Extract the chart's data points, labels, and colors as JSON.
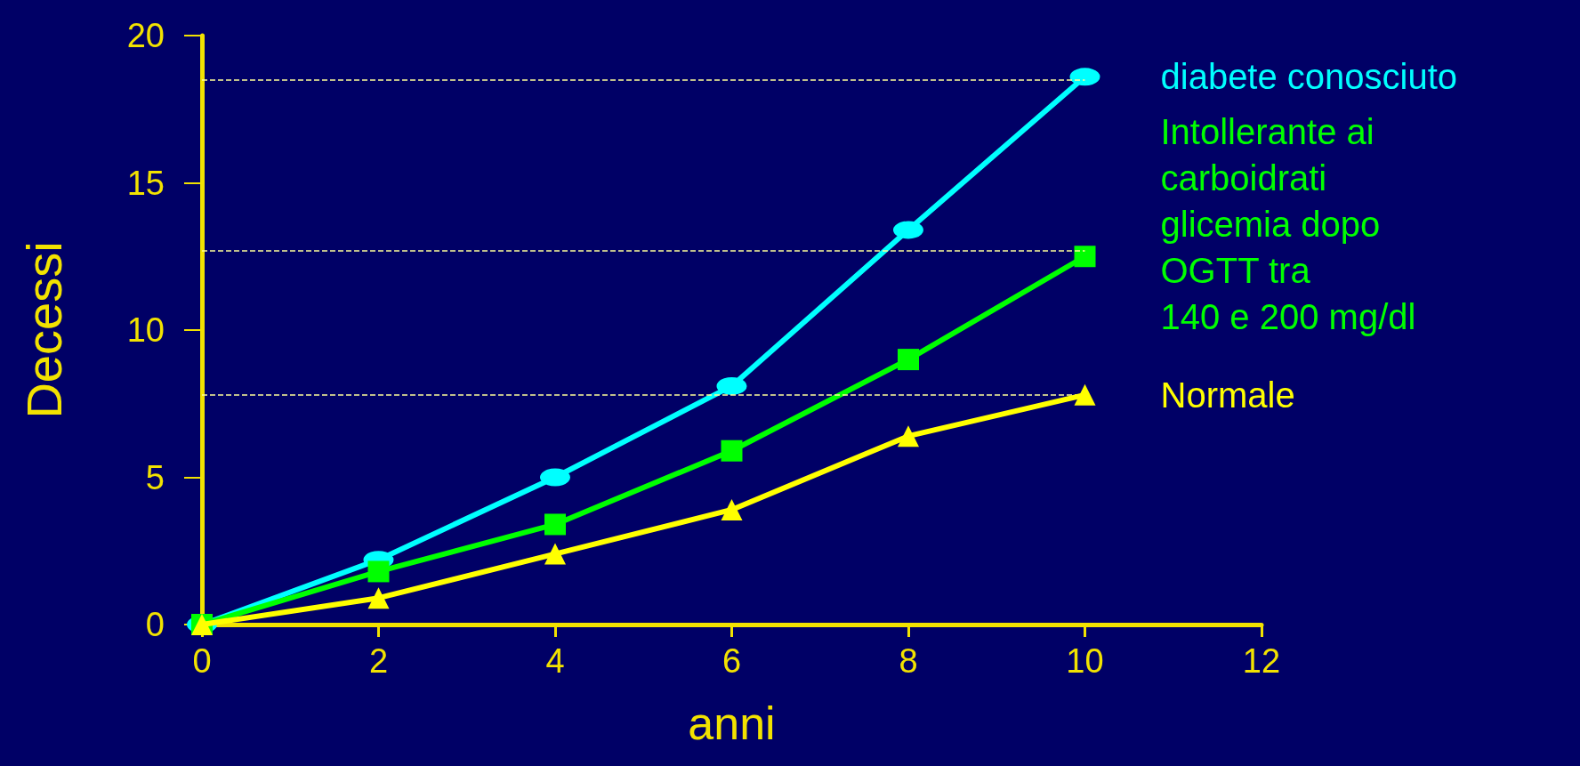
{
  "chart_data": {
    "type": "line",
    "xlabel": "anni",
    "ylabel": "Decessi",
    "x": [
      0,
      2,
      4,
      6,
      8,
      10
    ],
    "series": [
      {
        "name": "diabete conosciuto",
        "color": "#00ffff",
        "marker": "circle",
        "values": [
          0,
          2.2,
          5.0,
          8.1,
          13.4,
          18.6
        ]
      },
      {
        "name": "Intollerante ai\ncarboidrati\nglicemia dopo\nOGTT tra\n140 e 200 mg/dl",
        "color": "#00ff00",
        "marker": "square",
        "values": [
          0,
          1.8,
          3.4,
          5.9,
          9.0,
          12.5
        ]
      },
      {
        "name": "Normale",
        "color": "#ffff00",
        "marker": "triangle",
        "values": [
          0,
          0.9,
          2.4,
          3.9,
          6.4,
          7.8
        ]
      }
    ],
    "ref_lines": [
      {
        "axis": "y",
        "value": 18.5,
        "color": "#ffff99",
        "line_style": "dashed"
      },
      {
        "axis": "y",
        "value": 12.7,
        "color": "#ffff99",
        "line_style": "dashed"
      },
      {
        "axis": "y",
        "value": 7.8,
        "color": "#ffff99",
        "line_style": "dashed"
      }
    ],
    "xlim": [
      0,
      12
    ],
    "xticks": [
      0,
      2,
      4,
      6,
      8,
      10,
      12
    ],
    "ylim": [
      0,
      20
    ],
    "yticks": [
      0,
      5,
      10,
      15,
      20
    ],
    "grid": false,
    "legend": false,
    "line_style": "solid"
  }
}
